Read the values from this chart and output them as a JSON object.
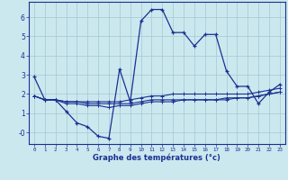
{
  "xlabel": "Graphe des températures (°c)",
  "background_color": "#cce8ef",
  "grid_color": "#a8cdd6",
  "line_color": "#1a3090",
  "x_ticks": [
    0,
    1,
    2,
    3,
    4,
    5,
    6,
    7,
    8,
    9,
    10,
    11,
    12,
    13,
    14,
    15,
    16,
    17,
    18,
    19,
    20,
    21,
    22,
    23
  ],
  "ylim": [
    -0.6,
    6.8
  ],
  "xlim": [
    -0.5,
    23.5
  ],
  "series1_x": [
    0,
    1,
    2,
    3,
    4,
    5,
    6,
    7,
    8,
    9,
    10,
    11,
    12,
    13,
    14,
    15,
    16,
    17,
    18,
    19,
    20,
    21,
    22,
    23
  ],
  "series1_y": [
    2.9,
    1.7,
    1.7,
    1.1,
    0.5,
    0.3,
    -0.2,
    -0.3,
    3.3,
    1.6,
    5.8,
    6.4,
    6.4,
    5.2,
    5.2,
    4.5,
    5.1,
    5.1,
    3.2,
    2.4,
    2.4,
    1.5,
    2.1,
    2.5
  ],
  "series2_x": [
    0,
    1,
    2,
    3,
    4,
    5,
    6,
    7,
    8,
    9,
    10,
    11,
    12,
    13,
    14,
    15,
    16,
    17,
    18,
    19,
    20,
    21,
    22,
    23
  ],
  "series2_y": [
    1.9,
    1.7,
    1.7,
    1.6,
    1.6,
    1.6,
    1.6,
    1.6,
    1.6,
    1.7,
    1.8,
    1.9,
    1.9,
    2.0,
    2.0,
    2.0,
    2.0,
    2.0,
    2.0,
    2.0,
    2.0,
    2.1,
    2.2,
    2.3
  ],
  "series3_x": [
    0,
    1,
    2,
    3,
    4,
    5,
    6,
    7,
    8,
    9,
    10,
    11,
    12,
    13,
    14,
    15,
    16,
    17,
    18,
    19,
    20,
    21,
    22,
    23
  ],
  "series3_y": [
    1.9,
    1.7,
    1.7,
    1.6,
    1.6,
    1.5,
    1.5,
    1.5,
    1.5,
    1.5,
    1.6,
    1.7,
    1.7,
    1.7,
    1.7,
    1.7,
    1.7,
    1.7,
    1.8,
    1.8,
    1.8,
    1.9,
    2.0,
    2.1
  ],
  "series4_x": [
    0,
    1,
    2,
    3,
    4,
    5,
    6,
    7,
    8,
    9,
    10,
    11,
    12,
    13,
    14,
    15,
    16,
    17,
    18,
    19,
    20,
    21,
    22,
    23
  ],
  "series4_y": [
    1.9,
    1.7,
    1.7,
    1.5,
    1.5,
    1.4,
    1.4,
    1.3,
    1.4,
    1.4,
    1.5,
    1.6,
    1.6,
    1.6,
    1.7,
    1.7,
    1.7,
    1.7,
    1.7,
    1.8,
    1.8,
    1.9,
    2.0,
    2.1
  ],
  "yticks": [
    0,
    1,
    2,
    3,
    4,
    5,
    6
  ],
  "ytick_labels": [
    "-0",
    "1",
    "2",
    "3",
    "4",
    "5",
    "6"
  ]
}
